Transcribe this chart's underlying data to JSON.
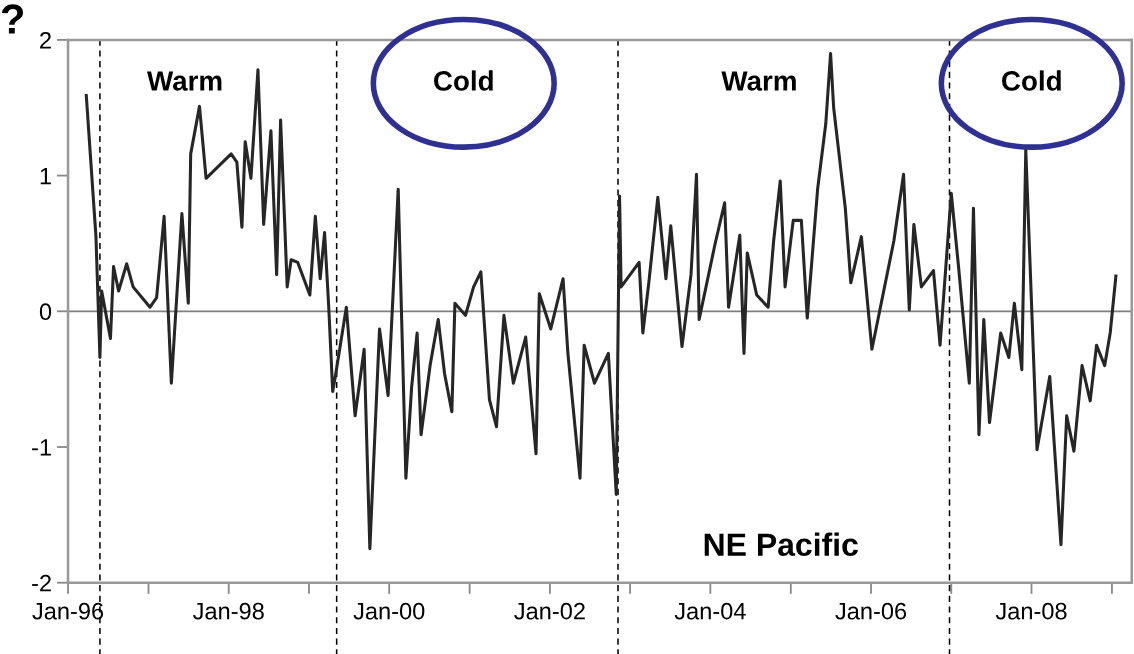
{
  "chart_data": {
    "type": "line",
    "annotations": [
      "?",
      "Warm",
      "Cold",
      "Warm",
      "Cold",
      "NE Pacific"
    ],
    "x": [
      "1996-03-24",
      "1996-05-07",
      "1996-05-25",
      "1996-06-02",
      "1996-07-12",
      "1996-07-26",
      "1996-08-18",
      "1996-09-24",
      "1996-10-23",
      "1997-01-08",
      "1997-02-07",
      "1997-03-13",
      "1997-04-15",
      "1997-06-02",
      "1997-07-01",
      "1997-07-12",
      "1997-08-21",
      "1997-09-20",
      "1998-01-12",
      "1998-02-07",
      "1998-03-02",
      "1998-03-17",
      "1998-04-12",
      "1998-05-14",
      "1998-06-09",
      "1998-07-12",
      "1998-08-07",
      "1998-08-25",
      "1998-09-24",
      "1998-10-12",
      "1998-11-11",
      "1999-01-05",
      "1999-01-30",
      "1999-02-21",
      "1999-03-13",
      "1999-04-01",
      "1999-04-19",
      "1999-05-03",
      "1999-06-20",
      "1999-07-30",
      "1999-09-09",
      "1999-10-05",
      "1999-11-18",
      "1999-12-27",
      "2000-02-11",
      "2000-03-17",
      "2000-04-12",
      "2000-05-07",
      "2000-05-25",
      "2000-07-05",
      "2000-08-11",
      "2000-09-09",
      "2000-10-12",
      "2000-10-26",
      "2000-12-13",
      "2001-01-19",
      "2001-02-21",
      "2001-04-01",
      "2001-05-03",
      "2001-06-06",
      "2001-07-19",
      "2001-09-13",
      "2001-10-30",
      "2001-11-14",
      "2002-01-05",
      "2002-03-02",
      "2002-03-24",
      "2002-05-18",
      "2002-06-06",
      "2002-07-23",
      "2002-09-24",
      "2002-10-30",
      "2002-11-14",
      "2002-11-21",
      "2003-02-11",
      "2003-02-28",
      "2003-03-27",
      "2003-05-07",
      "2003-06-13",
      "2003-07-05",
      "2003-08-25",
      "2003-10-05",
      "2003-10-30",
      "2003-11-11",
      "2004-01-23",
      "2004-03-06",
      "2004-03-24",
      "2004-05-14",
      "2004-06-02",
      "2004-06-17",
      "2004-07-30",
      "2004-09-20",
      "2004-10-15",
      "2004-11-14",
      "2004-12-06",
      "2005-01-12",
      "2005-02-18",
      "2005-03-17",
      "2005-05-03",
      "2005-06-09",
      "2005-07-01",
      "2005-07-15",
      "2005-09-06",
      "2005-10-01",
      "2005-11-18",
      "2006-01-05",
      "2006-04-15",
      "2006-05-29",
      "2006-06-24",
      "2006-07-15",
      "2006-08-18",
      "2006-10-12",
      "2006-11-11",
      "2007-01-01",
      "2007-02-03",
      "2007-03-24",
      "2007-04-12",
      "2007-05-07",
      "2007-05-29",
      "2007-06-24",
      "2007-08-14",
      "2007-09-20",
      "2007-10-15",
      "2007-11-18",
      "2007-12-06",
      "2008-01-26",
      "2008-03-24",
      "2008-05-14",
      "2008-06-09",
      "2008-07-12",
      "2008-08-18",
      "2008-09-24",
      "2008-10-23",
      "2008-11-29",
      "2008-12-24",
      "2009-01-19"
    ],
    "series": [
      {
        "color": "#262626",
        "values": [
          1.59,
          0.55,
          -0.34,
          0.15,
          -0.2,
          0.33,
          0.15,
          0.35,
          0.18,
          0.03,
          0.1,
          0.7,
          -0.53,
          0.72,
          0.06,
          1.16,
          1.51,
          0.98,
          1.16,
          1.1,
          0.62,
          1.25,
          0.98,
          1.78,
          0.64,
          1.33,
          0.27,
          1.41,
          0.18,
          0.38,
          0.36,
          0.12,
          0.7,
          0.24,
          0.58,
          0.03,
          -0.59,
          -0.46,
          0.03,
          -0.77,
          -0.28,
          -1.75,
          -0.13,
          -0.62,
          0.9,
          -1.23,
          -0.56,
          -0.16,
          -0.91,
          -0.4,
          -0.06,
          -0.46,
          -0.74,
          0.06,
          -0.03,
          0.18,
          0.29,
          -0.65,
          -0.85,
          -0.03,
          -0.53,
          -0.19,
          -1.05,
          0.13,
          -0.13,
          0.24,
          -0.31,
          -1.23,
          -0.25,
          -0.53,
          -0.31,
          -1.35,
          0.85,
          0.18,
          0.36,
          -0.16,
          0.21,
          0.84,
          0.24,
          0.63,
          -0.26,
          0.27,
          1.01,
          -0.06,
          0.5,
          0.8,
          0.03,
          0.56,
          -0.31,
          0.43,
          0.12,
          0.03,
          0.52,
          0.96,
          0.18,
          0.67,
          0.67,
          -0.05,
          0.9,
          1.38,
          1.9,
          1.5,
          0.76,
          0.21,
          0.55,
          -0.28,
          0.52,
          1.01,
          0.01,
          0.64,
          0.18,
          0.3,
          -0.25,
          0.87,
          0.33,
          -0.53,
          0.76,
          -0.91,
          -0.06,
          -0.82,
          -0.16,
          -0.34,
          0.06,
          -0.43,
          1.19,
          -1.02,
          -0.48,
          -1.72,
          -0.77,
          -1.03,
          -0.4,
          -0.66,
          -0.25,
          -0.4,
          -0.16,
          0.26
        ]
      }
    ],
    "xlim": [
      "1996-01-01",
      "2009-04-01"
    ],
    "xticks": [
      {
        "value": "1996-01",
        "label": "Jan-96"
      },
      {
        "value": "1997-01",
        "label": null
      },
      {
        "value": "1998-01",
        "label": "Jan-98"
      },
      {
        "value": "1999-01",
        "label": null
      },
      {
        "value": "2000-01",
        "label": "Jan-00"
      },
      {
        "value": "2001-01",
        "label": null
      },
      {
        "value": "2002-01",
        "label": "Jan-02"
      },
      {
        "value": "2003-01",
        "label": null
      },
      {
        "value": "2004-01",
        "label": "Jan-04"
      },
      {
        "value": "2005-01",
        "label": null
      },
      {
        "value": "2006-01",
        "label": "Jan-06"
      },
      {
        "value": "2007-01",
        "label": null
      },
      {
        "value": "2008-01",
        "label": "Jan-08"
      },
      {
        "value": "2009-01",
        "label": null
      }
    ],
    "ylim": [
      -2,
      2
    ],
    "yticks": [
      {
        "value": -2,
        "label": "-2"
      },
      {
        "value": -1,
        "label": "-1"
      },
      0,
      1,
      2
    ],
    "ref_lines": [
      {
        "axis": "y",
        "value": 0,
        "color": "#7f7f7f",
        "line_style": "solid"
      },
      {
        "axis": "x",
        "value": "1996-05-25",
        "color": "#000000",
        "line_style": "dashed"
      },
      {
        "axis": "x",
        "value": "1999-05-07",
        "color": "#000000",
        "line_style": "dashed"
      },
      {
        "axis": "x",
        "value": "2002-11-07",
        "color": "#000000",
        "line_style": "dashed"
      },
      {
        "axis": "x",
        "value": "2006-12-24",
        "color": "#000000",
        "line_style": "dashed"
      }
    ],
    "grid": false,
    "marker": "none",
    "line_style": "solid"
  }
}
